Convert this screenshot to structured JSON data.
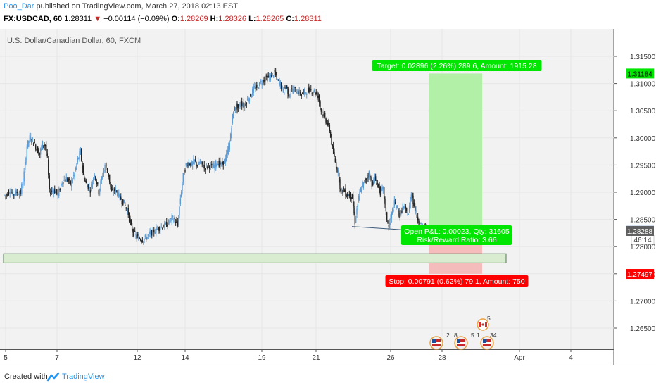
{
  "header": {
    "author": "Poo_Dar",
    "published_text": "published on TradingView.com, March 27, 2018 02:13 EST",
    "symbol": "FX:USDCAD, 60",
    "last": "1.28311",
    "change_arrow": "▼",
    "change": "−0.00114 (−0.09%)",
    "open_label": "O:",
    "open": "1.28269",
    "high_label": "H:",
    "high": "1.28326",
    "low_label": "L:",
    "low": "1.28265",
    "close_label": "C:",
    "close": "1.28311"
  },
  "chart_data": {
    "type": "candlestick",
    "title": "U.S. Dollar/Canadian Dollar, 60, FXCM",
    "ylim": [
      1.2605,
      1.3175
    ],
    "y_ticks": [
      "1.31500",
      "1.31000",
      "1.30500",
      "1.30000",
      "1.29500",
      "1.29000",
      "1.28500",
      "1.28000",
      "1.27500",
      "1.27000",
      "1.26500"
    ],
    "x_ticks": [
      "5",
      "7",
      "12",
      "14",
      "19",
      "21",
      "26",
      "28",
      "Apr",
      "4"
    ],
    "price_path": [
      [
        0,
        1.2894
      ],
      [
        5,
        1.2895
      ],
      [
        10,
        1.2905
      ],
      [
        14,
        1.2895
      ],
      [
        20,
        1.29
      ],
      [
        25,
        1.2898
      ],
      [
        30,
        1.2935
      ],
      [
        34,
        1.2985
      ],
      [
        38,
        1.3
      ],
      [
        42,
        1.2995
      ],
      [
        48,
        1.298
      ],
      [
        52,
        1.297
      ],
      [
        56,
        1.299
      ],
      [
        60,
        1.2985
      ],
      [
        63,
        1.296
      ],
      [
        66,
        1.29
      ],
      [
        72,
        1.2905
      ],
      [
        78,
        1.2895
      ],
      [
        84,
        1.292
      ],
      [
        90,
        1.2925
      ],
      [
        96,
        1.2915
      ],
      [
        102,
        1.2935
      ],
      [
        106,
        1.296
      ],
      [
        110,
        1.2975
      ],
      [
        114,
        1.293
      ],
      [
        118,
        1.2915
      ],
      [
        124,
        1.2905
      ],
      [
        130,
        1.2935
      ],
      [
        136,
        1.29
      ],
      [
        140,
        1.2925
      ],
      [
        145,
        1.295
      ],
      [
        150,
        1.293
      ],
      [
        154,
        1.29
      ],
      [
        160,
        1.2905
      ],
      [
        166,
        1.289
      ],
      [
        172,
        1.288
      ],
      [
        178,
        1.286
      ],
      [
        182,
        1.2835
      ],
      [
        186,
        1.2825
      ],
      [
        190,
        1.2818
      ],
      [
        194,
        1.2815
      ],
      [
        198,
        1.2813
      ],
      [
        202,
        1.2815
      ],
      [
        206,
        1.282
      ],
      [
        210,
        1.2825
      ],
      [
        216,
        1.283
      ],
      [
        222,
        1.2835
      ],
      [
        228,
        1.2838
      ],
      [
        234,
        1.2842
      ],
      [
        240,
        1.2852
      ],
      [
        244,
        1.285
      ],
      [
        248,
        1.2838
      ],
      [
        252,
        1.289
      ],
      [
        256,
        1.293
      ],
      [
        260,
        1.295
      ],
      [
        264,
        1.2955
      ],
      [
        268,
        1.295
      ],
      [
        272,
        1.2958
      ],
      [
        276,
        1.295
      ],
      [
        280,
        1.2955
      ],
      [
        286,
        1.2945
      ],
      [
        292,
        1.295
      ],
      [
        298,
        1.2945
      ],
      [
        304,
        1.2955
      ],
      [
        310,
        1.295
      ],
      [
        316,
        1.296
      ],
      [
        322,
        1.299
      ],
      [
        326,
        1.304
      ],
      [
        330,
        1.306
      ],
      [
        334,
        1.3055
      ],
      [
        338,
        1.3065
      ],
      [
        342,
        1.3058
      ],
      [
        346,
        1.3068
      ],
      [
        350,
        1.3075
      ],
      [
        356,
        1.309
      ],
      [
        362,
        1.3095
      ],
      [
        368,
        1.3105
      ],
      [
        374,
        1.311
      ],
      [
        380,
        1.3113
      ],
      [
        386,
        1.312
      ],
      [
        390,
        1.3105
      ],
      [
        394,
        1.31
      ],
      [
        398,
        1.3085
      ],
      [
        402,
        1.3095
      ],
      [
        406,
        1.308
      ],
      [
        412,
        1.309
      ],
      [
        418,
        1.3085
      ],
      [
        424,
        1.308
      ],
      [
        430,
        1.3085
      ],
      [
        436,
        1.3088
      ],
      [
        442,
        1.3085
      ],
      [
        448,
        1.3075
      ],
      [
        452,
        1.305
      ],
      [
        456,
        1.304
      ],
      [
        460,
        1.303
      ],
      [
        464,
        1.3015
      ],
      [
        468,
        1.298
      ],
      [
        472,
        1.2955
      ],
      [
        476,
        1.2935
      ],
      [
        480,
        1.29
      ],
      [
        484,
        1.2905
      ],
      [
        488,
        1.2895
      ],
      [
        492,
        1.2895
      ],
      [
        496,
        1.289
      ],
      [
        500,
        1.2845
      ],
      [
        504,
        1.288
      ],
      [
        508,
        1.2905
      ],
      [
        512,
        1.2915
      ],
      [
        516,
        1.2925
      ],
      [
        520,
        1.2935
      ],
      [
        524,
        1.2915
      ],
      [
        528,
        1.2925
      ],
      [
        532,
        1.2915
      ],
      [
        536,
        1.29
      ],
      [
        540,
        1.2905
      ],
      [
        544,
        1.286
      ],
      [
        548,
        1.2835
      ],
      [
        552,
        1.286
      ],
      [
        556,
        1.288
      ],
      [
        560,
        1.287
      ],
      [
        564,
        1.2855
      ],
      [
        568,
        1.2875
      ],
      [
        572,
        1.2865
      ],
      [
        576,
        1.286
      ],
      [
        580,
        1.29
      ],
      [
        584,
        1.2875
      ],
      [
        588,
        1.2855
      ],
      [
        592,
        1.2845
      ],
      [
        596,
        1.2835
      ],
      [
        600,
        1.2832
      ],
      [
        604,
        1.2831
      ]
    ],
    "current_price": "1.28311",
    "countdown": "46:14",
    "stop_price_tag": "1.27497",
    "target_price_tag": "1.31184",
    "entry_price_tag": "1.28288",
    "target_price": 1.31184,
    "entry_price": 1.28288,
    "stop_price": 1.27497,
    "support_zone": [
      1.277,
      1.2787
    ],
    "trendline_prices": [
      1.2837,
      1.283
    ],
    "labels": {
      "target": "Target: 0.02896 (2.26%) 289.6, Amount: 1915.28",
      "open_pnl": "Open P&L: 0.00023, Qty: 31605",
      "risk_reward": "Risk/Reward Ratio: 3.66",
      "stop": "Stop: 0.00791 (0.62%) 79.1, Amount: 750"
    },
    "events": [
      {
        "flag": "us",
        "counts": [
          "2",
          "8"
        ]
      },
      {
        "flag": "us",
        "counts": [
          "5",
          "1"
        ]
      },
      {
        "flag": "us",
        "counts": [
          "34"
        ]
      },
      {
        "flag": "ca",
        "counts": [
          "5"
        ]
      }
    ],
    "colors": {
      "price_up": "#5b9bd5",
      "price_down": "#222222",
      "target_fill": "#b2f0a8",
      "stop_fill": "#f5bcbc",
      "target_tag": "#00e600",
      "stop_tag": "#ff0000",
      "zone_fill": "#d9ecd0",
      "zone_border": "#557755"
    }
  },
  "footer": {
    "created_with": "Created with",
    "brand": "TradingView"
  }
}
